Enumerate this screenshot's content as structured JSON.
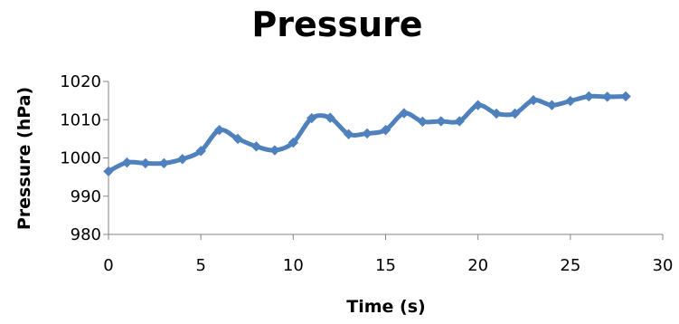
{
  "chart_data": {
    "type": "line",
    "title": "Pressure",
    "xlabel": "Time (s)",
    "ylabel": "Pressure (hPa)",
    "xlim": [
      0,
      30
    ],
    "ylim": [
      980,
      1020
    ],
    "xticks": [
      0,
      5,
      10,
      15,
      20,
      25,
      30
    ],
    "yticks": [
      980,
      990,
      1000,
      1010,
      1020
    ],
    "grid": false,
    "legend": "none",
    "series": [
      {
        "color": "#4f81bd",
        "marker": "diamond",
        "x": [
          0,
          1,
          2,
          3,
          4,
          5,
          6,
          7,
          8,
          9,
          10,
          11,
          12,
          13,
          14,
          15,
          16,
          17,
          18,
          19,
          20,
          21,
          22,
          23,
          24,
          25,
          26,
          27,
          28
        ],
        "y": [
          996.5,
          998.8,
          998.6,
          998.6,
          999.7,
          1001.8,
          1007.3,
          1005.0,
          1003.0,
          1002.0,
          1004.0,
          1010.4,
          1010.5,
          1006.2,
          1006.4,
          1007.3,
          1011.7,
          1009.5,
          1009.6,
          1009.6,
          1013.8,
          1011.6,
          1011.6,
          1015.1,
          1013.8,
          1014.9,
          1016.1,
          1016.0,
          1016.1
        ]
      }
    ]
  }
}
